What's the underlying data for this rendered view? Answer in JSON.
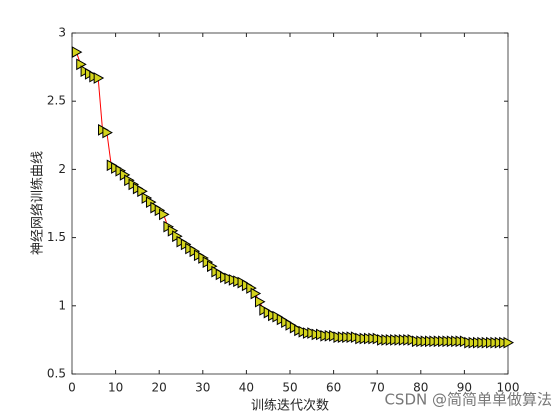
{
  "chart_data": {
    "type": "line",
    "xlabel": "训练迭代次数",
    "ylabel": "神经网络训练曲线",
    "watermark": "CSDN @简简单单做算法",
    "x": [
      1,
      2,
      3,
      4,
      5,
      6,
      7,
      8,
      9,
      10,
      11,
      12,
      13,
      14,
      15,
      16,
      17,
      18,
      19,
      20,
      21,
      22,
      23,
      24,
      25,
      26,
      27,
      28,
      29,
      30,
      31,
      32,
      33,
      34,
      35,
      36,
      37,
      38,
      39,
      40,
      41,
      42,
      43,
      44,
      45,
      46,
      47,
      48,
      49,
      50,
      51,
      52,
      53,
      54,
      55,
      56,
      57,
      58,
      59,
      60,
      61,
      62,
      63,
      64,
      65,
      66,
      67,
      68,
      69,
      70,
      71,
      72,
      73,
      74,
      75,
      76,
      77,
      78,
      79,
      80,
      81,
      82,
      83,
      84,
      85,
      86,
      87,
      88,
      89,
      90,
      91,
      92,
      93,
      94,
      95,
      96,
      97,
      98,
      99,
      100
    ],
    "series": [
      {
        "color": "#ff0000",
        "marker_fill": "#d4d41c",
        "marker_edge": "#000000",
        "values": [
          2.86,
          2.77,
          2.72,
          2.7,
          2.68,
          2.67,
          2.29,
          2.27,
          2.03,
          2.01,
          1.99,
          1.96,
          1.92,
          1.89,
          1.86,
          1.84,
          1.79,
          1.76,
          1.72,
          1.7,
          1.67,
          1.58,
          1.55,
          1.51,
          1.47,
          1.45,
          1.42,
          1.4,
          1.37,
          1.35,
          1.32,
          1.29,
          1.25,
          1.23,
          1.21,
          1.2,
          1.19,
          1.18,
          1.17,
          1.15,
          1.13,
          1.09,
          1.03,
          0.97,
          0.95,
          0.93,
          0.92,
          0.9,
          0.88,
          0.86,
          0.84,
          0.82,
          0.81,
          0.8,
          0.8,
          0.79,
          0.79,
          0.78,
          0.78,
          0.78,
          0.77,
          0.77,
          0.77,
          0.77,
          0.77,
          0.76,
          0.76,
          0.76,
          0.76,
          0.76,
          0.75,
          0.75,
          0.75,
          0.75,
          0.75,
          0.75,
          0.75,
          0.75,
          0.74,
          0.74,
          0.74,
          0.74,
          0.74,
          0.74,
          0.74,
          0.74,
          0.74,
          0.74,
          0.74,
          0.74,
          0.73,
          0.73,
          0.73,
          0.73,
          0.73,
          0.73,
          0.73,
          0.73,
          0.73,
          0.73
        ]
      }
    ],
    "xlim": [
      0,
      100
    ],
    "xticks": [
      0,
      10,
      20,
      30,
      40,
      50,
      60,
      70,
      80,
      90,
      100
    ],
    "ylim": [
      0.5,
      3
    ],
    "yticks": [
      0.5,
      1,
      1.5,
      2,
      2.5,
      3
    ]
  }
}
